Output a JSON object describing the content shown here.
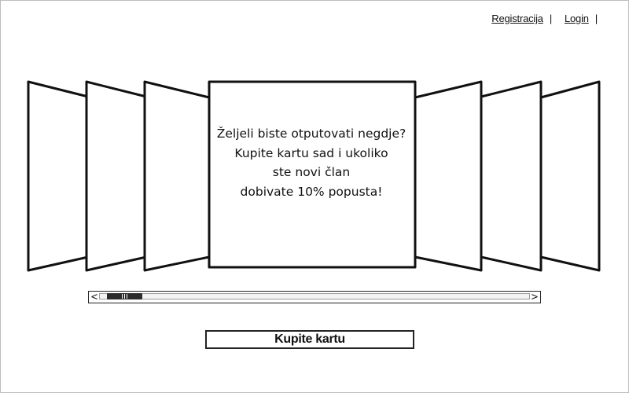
{
  "nav": {
    "registration_label": "Registracija",
    "login_label": "Login",
    "separator": "|"
  },
  "carousel": {
    "active_slide": {
      "lines": [
        "Željeli biste otputovati negdje?",
        "Kupite kartu sad i ukoliko",
        "ste novi član",
        "dobivate 10% popusta!"
      ]
    },
    "slides_left_count": 3,
    "slides_right_count": 3,
    "scroll_position": 0.04
  },
  "scrollbar": {
    "left_arrow": "<",
    "right_arrow": ">"
  },
  "cta": {
    "buy_label": "Kupite kartu"
  },
  "colors": {
    "stroke": "#111111",
    "background": "#ffffff"
  },
  "icons": {
    "scroll_left": "chevron-left-icon",
    "scroll_right": "chevron-right-icon",
    "thumb_grip": "grip-icon"
  }
}
